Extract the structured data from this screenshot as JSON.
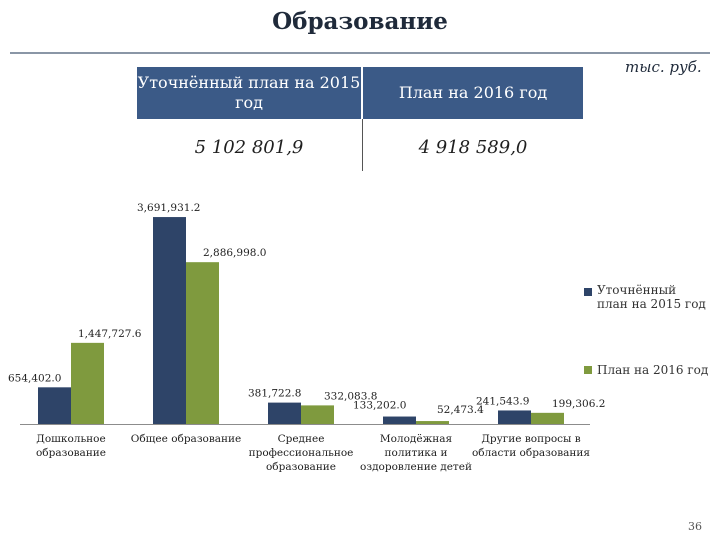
{
  "slide": {
    "title": "Образование",
    "unit": "тыс. руб.",
    "page_number": "36"
  },
  "summary_table": {
    "header_2015": "Уточнённый план на 2015 год",
    "header_2016": "План на 2016 год",
    "value_2015": "5 102 801,9",
    "value_2016": "4 918 589,0"
  },
  "colors": {
    "plan_2015": "#2e4468",
    "plan_2016": "#7f9a3e",
    "table_header": "#3b5a87"
  },
  "chart_data": {
    "type": "bar",
    "title": "",
    "xlabel": "",
    "ylabel": "",
    "ylim": [
      0,
      3800000
    ],
    "grid": false,
    "legend_position": "right",
    "categories": [
      [
        "Дошкольное",
        "образование"
      ],
      [
        "Общее образование"
      ],
      [
        "Среднее",
        "профессиональное",
        "образование"
      ],
      [
        "Молодёжная",
        "политика и",
        "оздоровление детей"
      ],
      [
        "Другие вопросы в",
        "области образования"
      ]
    ],
    "series": [
      {
        "name": "Уточнённый план на 2015 год",
        "values": [
          654402.0,
          3691931.2,
          381722.8,
          133202.0,
          241543.9
        ],
        "labels": [
          "654,402.0",
          "3,691,931.2",
          "381,722.8",
          "133,202.0",
          "241,543.9"
        ]
      },
      {
        "name": "План на 2016 год",
        "values": [
          1447727.6,
          2886998.0,
          332083.8,
          52473.4,
          199306.2
        ],
        "labels": [
          "1,447,727.6",
          "2,886,998.0",
          "332,083.8",
          "52,473.4",
          "199,306.2"
        ]
      }
    ]
  }
}
